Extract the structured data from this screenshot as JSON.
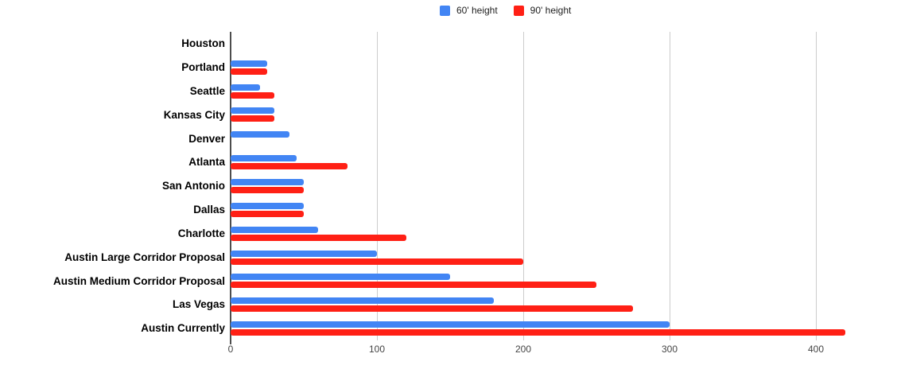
{
  "chart_data": {
    "type": "bar",
    "orientation": "horizontal",
    "title": "",
    "categories": [
      "Houston",
      "Portland",
      "Seattle",
      "Kansas City",
      "Denver",
      "Atlanta",
      "San Antonio",
      "Dallas",
      "Charlotte",
      "Austin Large Corridor Proposal",
      "Austin Medium Corridor Proposal",
      "Las Vegas",
      "Austin Currently"
    ],
    "series": [
      {
        "name": "60' height",
        "color": "#4285f4",
        "values": [
          0,
          25,
          20,
          30,
          40,
          45,
          50,
          50,
          60,
          100,
          150,
          180,
          300
        ]
      },
      {
        "name": "90' height",
        "color": "#ff2015",
        "values": [
          0,
          25,
          30,
          30,
          0,
          80,
          50,
          50,
          120,
          200,
          250,
          275,
          420
        ]
      }
    ],
    "x_axis": {
      "tick_labels": [
        "0",
        "100",
        "200",
        "300",
        "400"
      ],
      "tick_values": [
        0,
        100,
        200,
        300,
        400
      ],
      "min": 0,
      "max": 453
    },
    "grid": true,
    "legend_position": "top"
  },
  "colors": {
    "background": "#ffffff",
    "gridline": "#cccccc",
    "axis_line": "#4d4d4d",
    "category_label": "#000000",
    "tick_label": "#444444",
    "legend_text": "#1f1f1f"
  }
}
